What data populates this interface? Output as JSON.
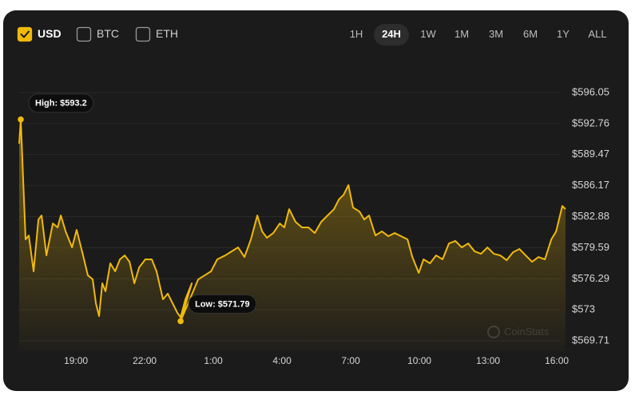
{
  "controls": {
    "currencies": [
      {
        "label": "USD",
        "checked": true
      },
      {
        "label": "BTC",
        "checked": false
      },
      {
        "label": "ETH",
        "checked": false
      }
    ],
    "ranges": [
      "1H",
      "24H",
      "1W",
      "1M",
      "3M",
      "6M",
      "1Y",
      "ALL"
    ],
    "selected_range": "24H"
  },
  "watermark": "CoinStats",
  "chart_data": {
    "type": "line",
    "annotations": [
      {
        "text": "High: $593.2",
        "index": 1
      },
      {
        "text": "Low: $571.79",
        "index": 39
      }
    ],
    "x": [
      16.52,
      16.59,
      16.66,
      16.8,
      16.94,
      17.15,
      17.36,
      17.5,
      17.71,
      17.99,
      18.2,
      18.34,
      18.55,
      18.83,
      19.03,
      19.31,
      19.52,
      19.73,
      19.87,
      20.01,
      20.15,
      20.29,
      20.5,
      20.71,
      20.92,
      21.13,
      21.34,
      21.55,
      21.76,
      22.03,
      22.31,
      22.52,
      22.8,
      23.01,
      23.22,
      23.43,
      23.57,
      23.78,
      24.06,
      23.57,
      24.34,
      24.62,
      24.9,
      25.17,
      25.52,
      25.8,
      26.08,
      26.36,
      26.64,
      26.92,
      27.13,
      27.34,
      27.62,
      27.9,
      28.1,
      28.31,
      28.59,
      28.87,
      29.15,
      29.43,
      29.71,
      29.99,
      30.27,
      30.48,
      30.69,
      30.9,
      31.1,
      31.38,
      31.59,
      31.8,
      32.08,
      32.36,
      32.64,
      32.92,
      33.2,
      33.48,
      33.69,
      33.97,
      34.18,
      34.46,
      34.73,
      35.01,
      35.29,
      35.57,
      35.85,
      36.13,
      36.41,
      36.69,
      36.97,
      37.25,
      37.53,
      37.81,
      38.09,
      38.37,
      38.64,
      38.92,
      39.2,
      39.48,
      39.76,
      39.97,
      40.24,
      40.38
    ],
    "series": [
      {
        "name": "USD",
        "color": "#f0b90b",
        "values": [
          590.63,
          593.2,
          588.94,
          580.47,
          580.89,
          577.08,
          582.58,
          583.01,
          578.77,
          582.16,
          581.74,
          583.01,
          581.32,
          579.62,
          581.48,
          578.77,
          576.65,
          576.23,
          573.69,
          572.33,
          575.81,
          574.96,
          577.93,
          577.08,
          578.35,
          578.77,
          578.09,
          575.81,
          577.5,
          578.35,
          578.35,
          577.08,
          574.11,
          574.71,
          573.69,
          572.67,
          572.2,
          574.11,
          575.81,
          571.79,
          576.23,
          576.65,
          577.08,
          578.35,
          578.77,
          579.2,
          579.62,
          578.6,
          580.47,
          583.01,
          581.32,
          580.64,
          581.15,
          582.16,
          581.74,
          583.68,
          582.33,
          581.74,
          581.74,
          581.15,
          582.33,
          583.01,
          583.68,
          584.7,
          585.21,
          586.23,
          583.85,
          583.43,
          582.58,
          583.01,
          580.89,
          581.32,
          580.81,
          581.15,
          580.81,
          580.47,
          578.6,
          576.91,
          578.35,
          577.93,
          578.77,
          578.35,
          580.04,
          580.3,
          579.62,
          580.04,
          579.2,
          578.94,
          579.62,
          578.94,
          578.77,
          578.26,
          579.11,
          579.45,
          578.77,
          578.09,
          578.6,
          578.35,
          580.47,
          581.32,
          584.02,
          583.68
        ]
      }
    ],
    "xlim": [
      16.52,
      40.38
    ],
    "xticks": [
      {
        "value": 19,
        "label": "19:00"
      },
      {
        "value": 22,
        "label": "22:00"
      },
      {
        "value": 25,
        "label": "1:00"
      },
      {
        "value": 28,
        "label": "4:00"
      },
      {
        "value": 31,
        "label": "7:00"
      },
      {
        "value": 34,
        "label": "10:00"
      },
      {
        "value": 37,
        "label": "13:00"
      },
      {
        "value": 40,
        "label": "16:00"
      }
    ],
    "ylim": [
      568.61,
      598.68
    ],
    "yticks": [
      {
        "value": 569.71,
        "label": "$569.71"
      },
      {
        "value": 573,
        "label": "$573"
      },
      {
        "value": 576.29,
        "label": "$576.29"
      },
      {
        "value": 579.59,
        "label": "$579.59"
      },
      {
        "value": 582.88,
        "label": "$582.88"
      },
      {
        "value": 586.17,
        "label": "$586.17"
      },
      {
        "value": 589.47,
        "label": "$589.47"
      },
      {
        "value": 592.76,
        "label": "$592.76"
      },
      {
        "value": 596.05,
        "label": "$596.05"
      }
    ],
    "grid": true
  }
}
